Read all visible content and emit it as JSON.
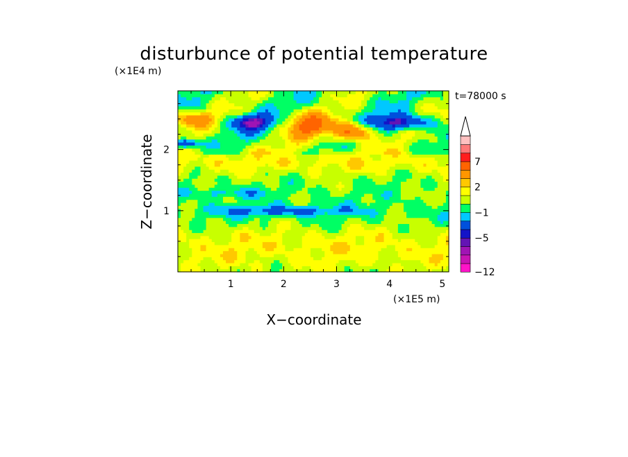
{
  "chart_data": {
    "type": "heatmap",
    "title": "disturbunce of potential temperature",
    "xlabel": "X−coordinate",
    "ylabel": "Z−coordinate",
    "x_unit": "(×1E5 m)",
    "y_unit": "(×1E4 m)",
    "time_label": "t=78000 s",
    "xlim": [
      0,
      5.12
    ],
    "ylim": [
      0,
      2.96
    ],
    "x_ticks": [
      1,
      2,
      3,
      4,
      5
    ],
    "y_ticks": [
      1,
      2
    ],
    "x_tick_labels": [
      "1",
      "2",
      "3",
      "4",
      "5"
    ],
    "y_tick_labels": [
      "1",
      "2"
    ],
    "colorbar": {
      "levels": [
        -12,
        -10,
        -8,
        -6,
        -5,
        -4,
        -2,
        -1,
        0,
        1,
        2,
        3,
        5,
        7,
        9,
        11
      ],
      "labeled_ticks": [
        {
          "value": -12,
          "label": "−12"
        },
        {
          "value": -5,
          "label": "−5"
        },
        {
          "value": -1,
          "label": "−1"
        },
        {
          "value": 2,
          "label": "2"
        },
        {
          "value": 7,
          "label": "7"
        }
      ],
      "colors": [
        "#ff14c8",
        "#c814b4",
        "#a014b4",
        "#6414b4",
        "#1414c8",
        "#0050dc",
        "#00c8ff",
        "#00ff64",
        "#c8ff00",
        "#ffff00",
        "#ffc800",
        "#ff9600",
        "#ff6400",
        "#ff1e1e",
        "#ff7878",
        "#ffc0c0"
      ],
      "extend": "max"
    },
    "field_features": [
      {
        "kind": "band",
        "z_center": 0.4,
        "z_halfwidth": 0.4,
        "value": 1.5
      },
      {
        "kind": "band",
        "z_center": 0.95,
        "z_halfwidth": 0.3,
        "value": -0.5
      },
      {
        "kind": "blob",
        "x": 2.0,
        "z": 1.0,
        "sx": 1.3,
        "sz": 0.08,
        "value": -2.5
      },
      {
        "kind": "band",
        "z_center": 1.8,
        "z_halfwidth": 0.2,
        "value": 1.5
      },
      {
        "kind": "blob",
        "x": 2.5,
        "z": 2.4,
        "sx": 0.4,
        "sz": 0.2,
        "value": 5.5
      },
      {
        "kind": "blob",
        "x": 3.3,
        "z": 2.3,
        "sx": 0.35,
        "sz": 0.15,
        "value": 6.0
      },
      {
        "kind": "blob",
        "x": 1.4,
        "z": 2.45,
        "sx": 0.35,
        "sz": 0.12,
        "value": -6.0
      },
      {
        "kind": "blob",
        "x": 4.2,
        "z": 2.45,
        "sx": 0.55,
        "sz": 0.12,
        "value": -5.5
      },
      {
        "kind": "blob",
        "x": 0.15,
        "z": 2.1,
        "sx": 0.25,
        "sz": 0.07,
        "value": -5.0
      },
      {
        "kind": "blob",
        "x": 0.3,
        "z": 2.5,
        "sx": 0.35,
        "sz": 0.12,
        "value": 4.0
      },
      {
        "kind": "blob",
        "x": 0.9,
        "z": 1.3,
        "sx": 0.9,
        "sz": 0.08,
        "value": -1.5
      }
    ]
  }
}
